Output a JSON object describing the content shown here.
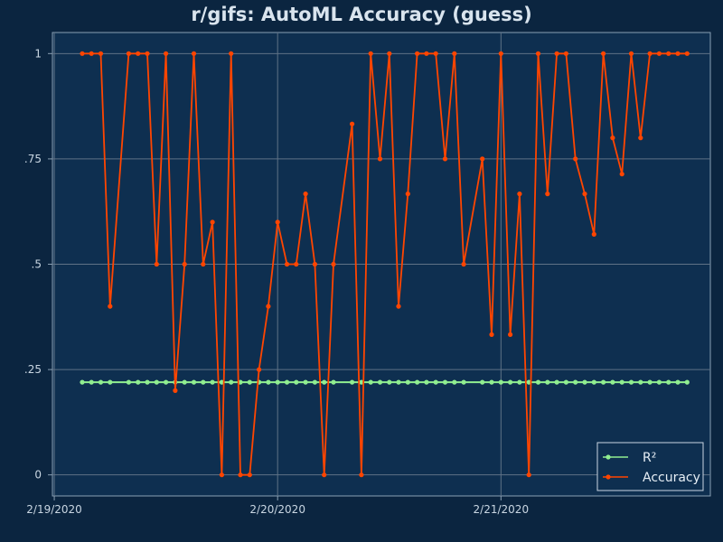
{
  "chart_data": {
    "type": "line",
    "title": "r/gifs: AutoML Accuracy (guess)",
    "xlabel": "",
    "ylabel": "",
    "x_ticks": [
      {
        "label": "2/19/2020",
        "value": 0
      },
      {
        "label": "2/20/2020",
        "value": 24
      },
      {
        "label": "2/21/2020",
        "value": 48
      }
    ],
    "y_ticks": [
      {
        "label": "0",
        "value": 0
      },
      {
        "label": ".25",
        "value": 0.25
      },
      {
        "label": ".5",
        "value": 0.5
      },
      {
        "label": ".75",
        "value": 0.75
      },
      {
        "label": "1",
        "value": 1
      }
    ],
    "xlim": [
      -0.2,
      70.5
    ],
    "ylim": [
      -0.05,
      1.05
    ],
    "grid": true,
    "legend_position": "bottom-right",
    "colors": {
      "background": "#0b2540",
      "plot_area": "#0e2f50",
      "grid": "#5f7286",
      "r2": "#90ee90",
      "accuracy": "#ff4500"
    },
    "series": [
      {
        "name": "R²",
        "x": [
          3,
          4,
          5,
          6,
          8,
          9,
          10,
          11,
          12,
          13,
          14,
          15,
          16,
          17,
          18,
          19,
          20,
          21,
          22,
          23,
          24,
          25,
          26,
          27,
          28,
          29,
          30,
          32,
          33,
          34,
          35,
          36,
          37,
          38,
          39,
          40,
          41,
          42,
          43,
          44,
          46,
          47,
          48,
          49,
          50,
          51,
          52,
          53,
          54,
          55,
          56,
          57,
          58,
          59,
          60,
          61,
          62,
          63,
          64,
          65,
          66,
          67,
          68
        ],
        "values": [
          0.22,
          0.22,
          0.22,
          0.22,
          0.22,
          0.22,
          0.22,
          0.22,
          0.22,
          0.22,
          0.22,
          0.22,
          0.22,
          0.22,
          0.22,
          0.22,
          0.22,
          0.22,
          0.22,
          0.22,
          0.22,
          0.22,
          0.22,
          0.22,
          0.22,
          0.22,
          0.22,
          0.22,
          0.22,
          0.22,
          0.22,
          0.22,
          0.22,
          0.22,
          0.22,
          0.22,
          0.22,
          0.22,
          0.22,
          0.22,
          0.22,
          0.22,
          0.22,
          0.22,
          0.22,
          0.22,
          0.22,
          0.22,
          0.22,
          0.22,
          0.22,
          0.22,
          0.22,
          0.22,
          0.22,
          0.22,
          0.22,
          0.22,
          0.22,
          0.22,
          0.22,
          0.22,
          0.22
        ]
      },
      {
        "name": "Accuracy",
        "x": [
          3,
          4,
          5,
          6,
          8,
          9,
          10,
          11,
          12,
          13,
          14,
          15,
          16,
          17,
          18,
          19,
          20,
          21,
          22,
          23,
          24,
          25,
          26,
          27,
          28,
          29,
          30,
          32,
          33,
          34,
          35,
          36,
          37,
          38,
          39,
          40,
          41,
          42,
          43,
          44,
          46,
          47,
          48,
          49,
          50,
          51,
          52,
          53,
          54,
          55,
          56,
          57,
          58,
          59,
          60,
          61,
          62,
          63,
          64,
          65,
          66,
          67,
          68
        ],
        "values": [
          1,
          1,
          1,
          0.4,
          1,
          1,
          1,
          0.5,
          1,
          0.2,
          0.5,
          1,
          0.5,
          0.6,
          0,
          1,
          0,
          0,
          0.25,
          0.4,
          0.6,
          0.5,
          0.5,
          0.667,
          0.5,
          0,
          0.5,
          0.833,
          0,
          1,
          0.75,
          1,
          0.4,
          0.667,
          1,
          1,
          1,
          0.75,
          1,
          0.5,
          0.75,
          0.333,
          1,
          0.333,
          0.667,
          0,
          1,
          0.667,
          1,
          1,
          0.75,
          0.667,
          0.571,
          1,
          0.8,
          0.714,
          1,
          0.8,
          1,
          1,
          1,
          1,
          1
        ]
      }
    ]
  }
}
